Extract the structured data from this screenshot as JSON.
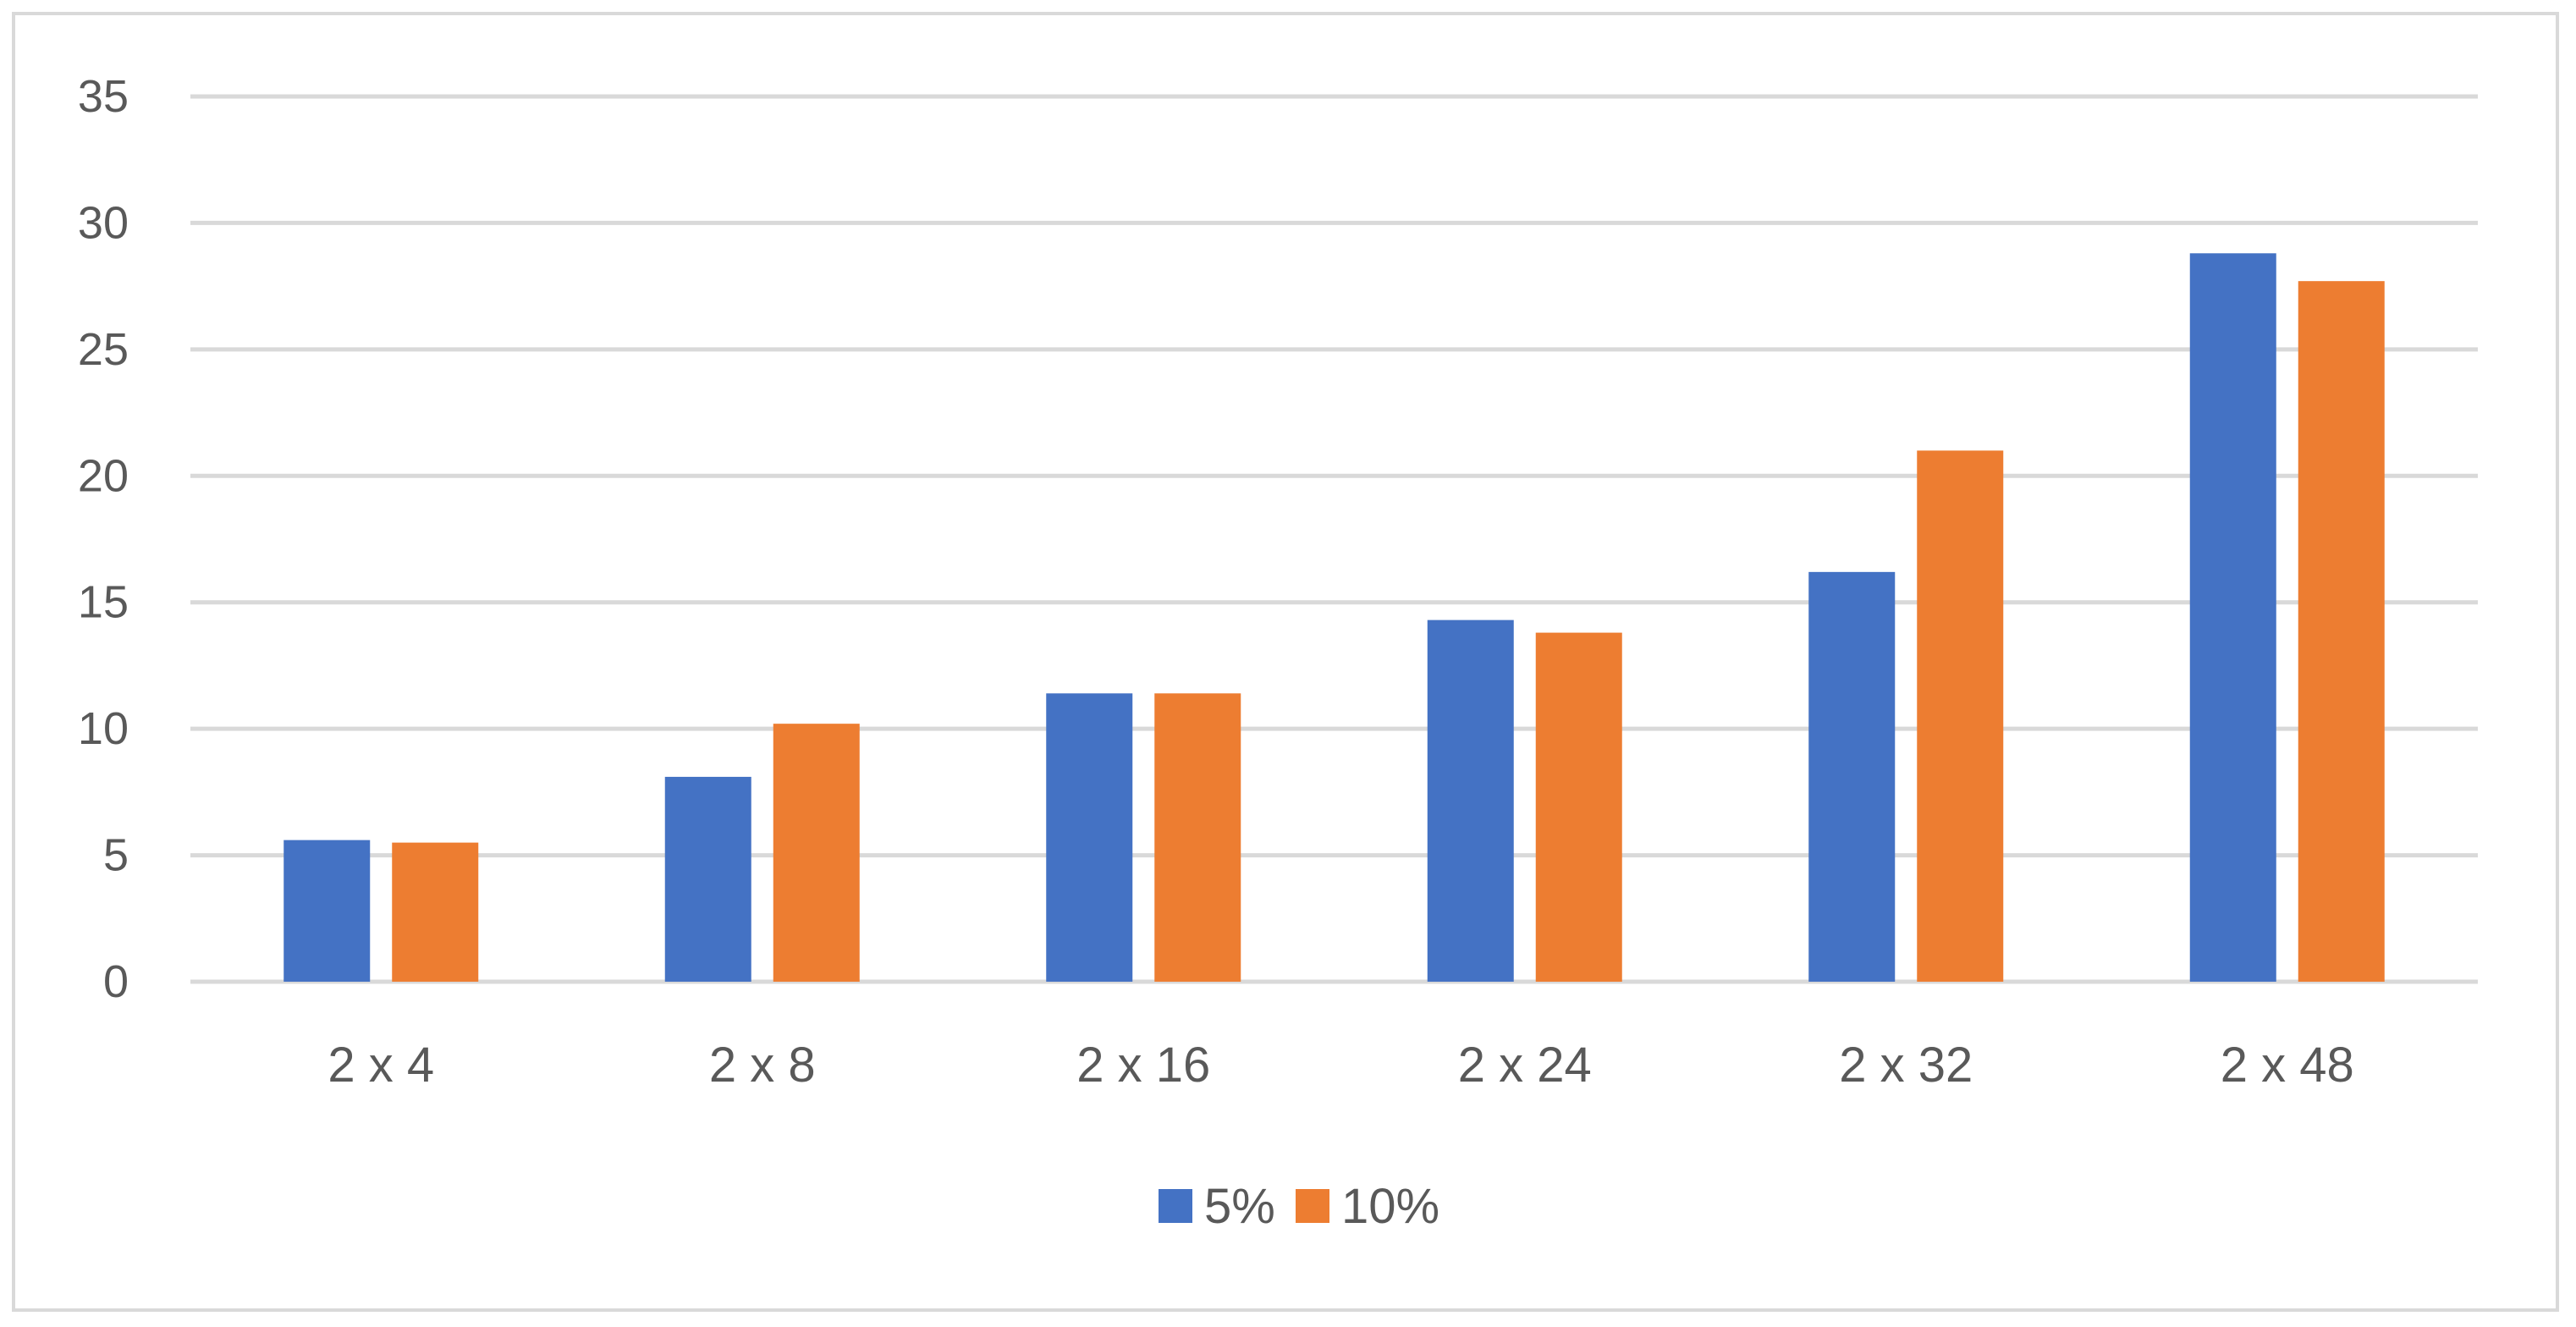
{
  "chart_data": {
    "type": "bar",
    "title": "",
    "xlabel": "",
    "ylabel": "",
    "categories": [
      "2 x 4",
      "2 x 8",
      "2 x 16",
      "2 x 24",
      "2 x 32",
      "2 x 48"
    ],
    "series": [
      {
        "name": "5%",
        "color": "#4472C4",
        "values": [
          5.6,
          8.1,
          11.4,
          14.3,
          16.2,
          28.8
        ]
      },
      {
        "name": "10%",
        "color": "#ED7D31",
        "values": [
          5.5,
          10.2,
          11.4,
          13.8,
          21.0,
          27.7
        ]
      }
    ],
    "ylim": [
      0,
      35
    ],
    "yticks": [
      "0",
      "5",
      "10",
      "15",
      "20",
      "25",
      "30",
      "35"
    ],
    "grid": true,
    "legend_position": "bottom-center",
    "gridline_color": "#d9d9d9"
  }
}
